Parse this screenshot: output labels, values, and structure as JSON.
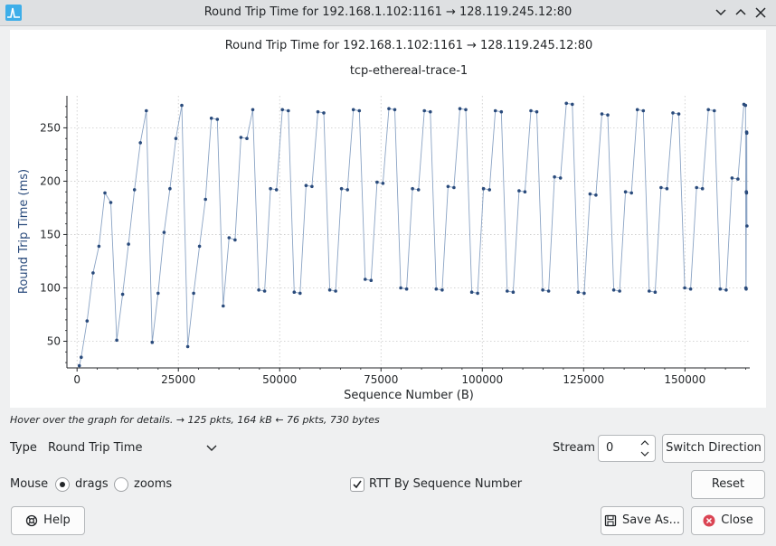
{
  "window": {
    "title": "Round Trip Time for 192.168.1.102:1161 → 128.119.245.12:80"
  },
  "plot": {
    "title": "Round Trip Time for 192.168.1.102:1161 → 128.119.245.12:80",
    "subtitle": "tcp-ethereal-trace-1"
  },
  "chart_data": {
    "type": "scatter",
    "title": "Round Trip Time for 192.168.1.102:1161 → 128.119.245.12:80",
    "subtitle": "tcp-ethereal-trace-1",
    "xlabel": "Sequence Number (B)",
    "ylabel": "Round Trip Time (ms)",
    "xlim": [
      -2500,
      166000
    ],
    "ylim": [
      25,
      280
    ],
    "x_ticks": [
      0,
      25000,
      50000,
      75000,
      100000,
      125000,
      150000
    ],
    "y_ticks": [
      50,
      100,
      150,
      200,
      250
    ],
    "grid": true,
    "series_color": "#2a4b7c",
    "points": [
      [
        566,
        27
      ],
      [
        1026,
        35
      ],
      [
        2486,
        69
      ],
      [
        3946,
        114
      ],
      [
        5406,
        139
      ],
      [
        6866,
        189
      ],
      [
        8326,
        180
      ],
      [
        9786,
        51
      ],
      [
        11246,
        94
      ],
      [
        12706,
        141
      ],
      [
        14166,
        192
      ],
      [
        15626,
        236
      ],
      [
        17086,
        266
      ],
      [
        18546,
        49
      ],
      [
        20006,
        95
      ],
      [
        21466,
        152
      ],
      [
        22926,
        193
      ],
      [
        24386,
        240
      ],
      [
        25846,
        271
      ],
      [
        27306,
        45
      ],
      [
        28766,
        95
      ],
      [
        30226,
        139
      ],
      [
        31686,
        183
      ],
      [
        33146,
        259
      ],
      [
        34606,
        258
      ],
      [
        36066,
        83
      ],
      [
        37526,
        147
      ],
      [
        38986,
        145
      ],
      [
        40446,
        241
      ],
      [
        41906,
        240
      ],
      [
        43366,
        267
      ],
      [
        44826,
        98
      ],
      [
        46286,
        97
      ],
      [
        47746,
        193
      ],
      [
        49206,
        192
      ],
      [
        50666,
        267
      ],
      [
        52126,
        266
      ],
      [
        53586,
        96
      ],
      [
        55046,
        95
      ],
      [
        56506,
        196
      ],
      [
        57966,
        195
      ],
      [
        59426,
        265
      ],
      [
        60886,
        264
      ],
      [
        62346,
        98
      ],
      [
        63806,
        97
      ],
      [
        65266,
        193
      ],
      [
        66726,
        192
      ],
      [
        68186,
        267
      ],
      [
        69646,
        266
      ],
      [
        71106,
        108
      ],
      [
        72566,
        107
      ],
      [
        74026,
        199
      ],
      [
        75486,
        198
      ],
      [
        76946,
        268
      ],
      [
        78406,
        267
      ],
      [
        79866,
        100
      ],
      [
        81326,
        99
      ],
      [
        82786,
        193
      ],
      [
        84246,
        192
      ],
      [
        85706,
        266
      ],
      [
        87166,
        265
      ],
      [
        88626,
        99
      ],
      [
        90086,
        98
      ],
      [
        91546,
        195
      ],
      [
        93006,
        194
      ],
      [
        94466,
        268
      ],
      [
        95926,
        267
      ],
      [
        97386,
        96
      ],
      [
        98846,
        95
      ],
      [
        100306,
        193
      ],
      [
        101766,
        192
      ],
      [
        103226,
        266
      ],
      [
        104686,
        265
      ],
      [
        106146,
        97
      ],
      [
        107606,
        96
      ],
      [
        109066,
        191
      ],
      [
        110526,
        190
      ],
      [
        111986,
        266
      ],
      [
        113446,
        265
      ],
      [
        114906,
        98
      ],
      [
        116366,
        97
      ],
      [
        117826,
        204
      ],
      [
        119286,
        203
      ],
      [
        120746,
        273
      ],
      [
        122206,
        272
      ],
      [
        123666,
        96
      ],
      [
        125126,
        95
      ],
      [
        126586,
        188
      ],
      [
        128046,
        187
      ],
      [
        129506,
        263
      ],
      [
        130966,
        262
      ],
      [
        132426,
        98
      ],
      [
        133886,
        97
      ],
      [
        135346,
        190
      ],
      [
        136806,
        189
      ],
      [
        138266,
        267
      ],
      [
        139726,
        266
      ],
      [
        141186,
        97
      ],
      [
        142646,
        96
      ],
      [
        144106,
        194
      ],
      [
        145566,
        193
      ],
      [
        147026,
        264
      ],
      [
        148486,
        263
      ],
      [
        149946,
        100
      ],
      [
        151406,
        99
      ],
      [
        152866,
        194
      ],
      [
        154326,
        193
      ],
      [
        155786,
        267
      ],
      [
        157246,
        266
      ],
      [
        158706,
        99
      ],
      [
        160166,
        98
      ],
      [
        161626,
        203
      ],
      [
        163086,
        202
      ],
      [
        164546,
        272
      ],
      [
        164946,
        271
      ],
      [
        165046,
        100
      ],
      [
        165106,
        99
      ],
      [
        165146,
        190
      ],
      [
        165186,
        189
      ],
      [
        165226,
        246
      ],
      [
        165266,
        245
      ],
      [
        165306,
        158
      ]
    ]
  },
  "hint": "Hover over the graph for details. → 125 pkts, 164 kB ← 76 pkts, 730 bytes",
  "controls": {
    "type_label": "Type",
    "type_value": "Round Trip Time",
    "stream_label": "Stream",
    "stream_value": "0",
    "switch_direction": "Switch Direction",
    "mouse_label": "Mouse",
    "drags_label": "drags",
    "zooms_label": "zooms",
    "rtt_by_seq_label": "RTT By Sequence Number",
    "reset": "Reset",
    "help": "Help",
    "save_as": "Save As...",
    "close": "Close"
  }
}
